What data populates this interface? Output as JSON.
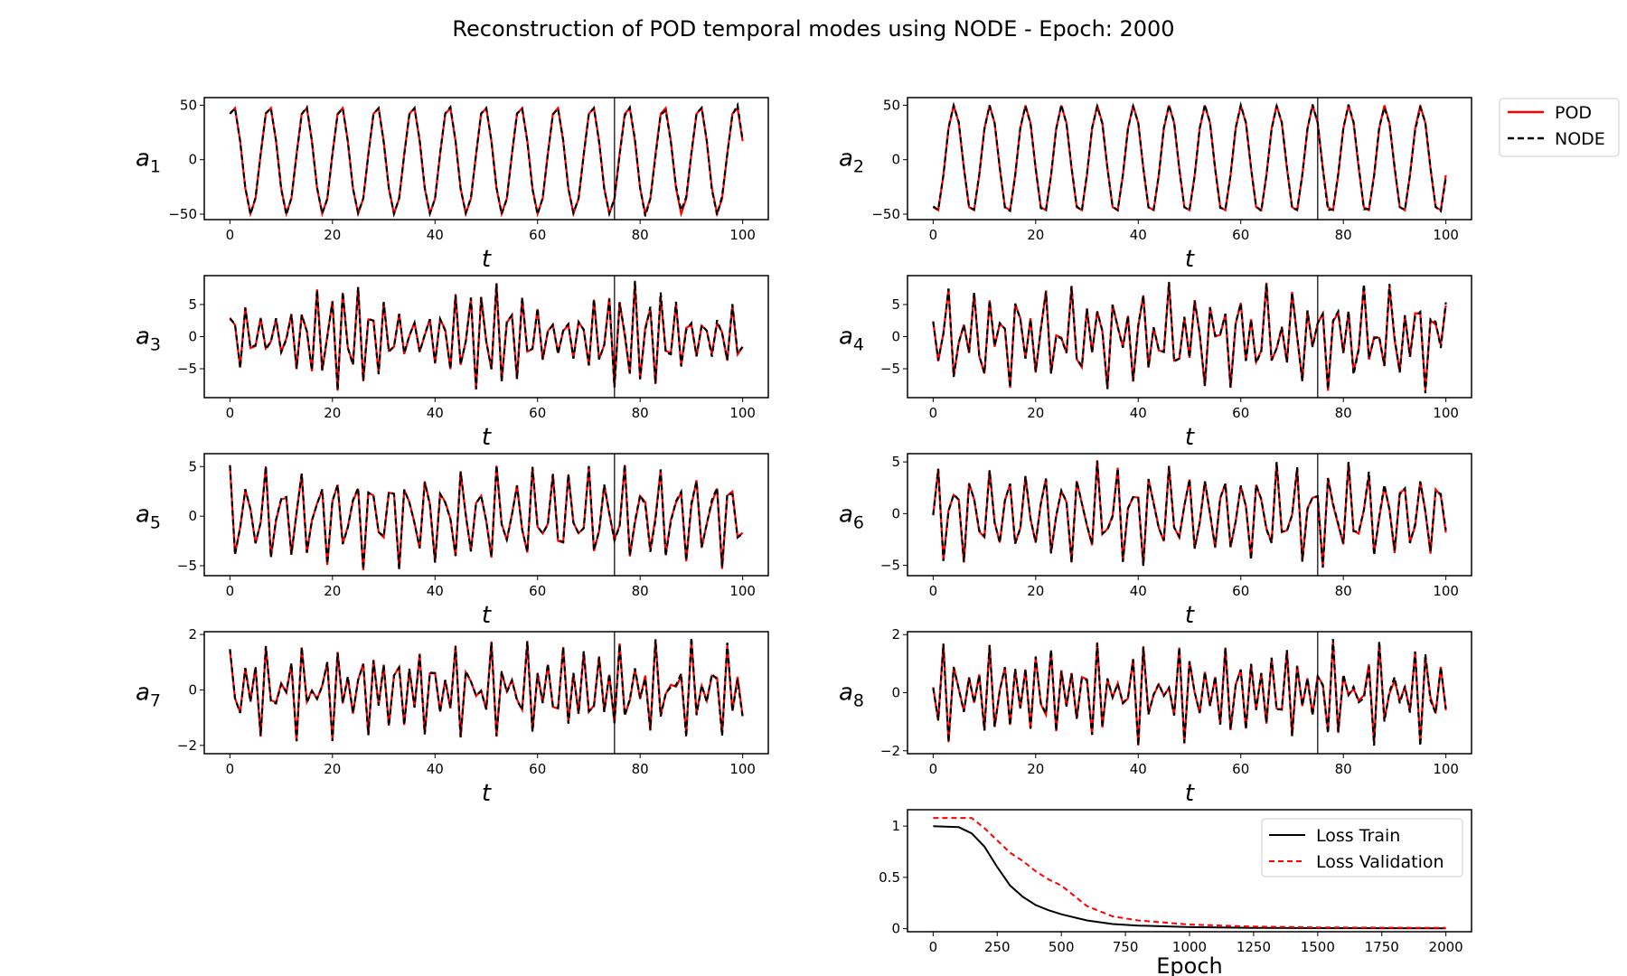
{
  "figure": {
    "title": "Reconstruction of POD temporal modes using NODE - Epoch:  2000"
  },
  "legend": {
    "pod": "POD",
    "node": "NODE"
  },
  "colors": {
    "pod": "#ff0000",
    "node": "#000000",
    "split": "#000000"
  },
  "chart_data": [
    {
      "type": "line",
      "panel": "a1",
      "ylabel_base": "a",
      "ylabel_sub": "1",
      "xlabel": "t",
      "xlim": [
        -5,
        105
      ],
      "ylim": [
        -55,
        57
      ],
      "xticks": [
        0,
        20,
        40,
        60,
        80,
        100
      ],
      "yticks": [
        -50,
        0,
        50
      ],
      "split_x": 75,
      "amplitude": 50,
      "period": 7.0,
      "phase": 1.0,
      "x_range": [
        0,
        100
      ],
      "n_points": 101,
      "series": [
        {
          "name": "POD",
          "style": "solid"
        },
        {
          "name": "NODE",
          "style": "dashed"
        }
      ]
    },
    {
      "type": "line",
      "panel": "a2",
      "ylabel_base": "a",
      "ylabel_sub": "2",
      "xlabel": "t",
      "xlim": [
        -5,
        105
      ],
      "ylim": [
        -55,
        57
      ],
      "xticks": [
        0,
        20,
        40,
        60,
        80,
        100
      ],
      "yticks": [
        -50,
        0,
        50
      ],
      "split_x": 75,
      "amplitude": 50,
      "period": 7.0,
      "phase": 4.2,
      "x_range": [
        0,
        100
      ],
      "n_points": 101,
      "series": [
        {
          "name": "POD",
          "style": "solid"
        },
        {
          "name": "NODE",
          "style": "dashed"
        }
      ]
    },
    {
      "type": "line",
      "panel": "a3",
      "ylabel_base": "a",
      "ylabel_sub": "3",
      "xlabel": "t",
      "xlim": [
        -5,
        105
      ],
      "ylim": [
        -9.5,
        9.5
      ],
      "xticks": [
        0,
        20,
        40,
        60,
        80,
        100
      ],
      "yticks": [
        -5,
        0,
        5
      ],
      "split_x": 75,
      "amplitude": 8.5,
      "period": 2.7,
      "phase": 0.0,
      "x_range": [
        0,
        100
      ],
      "n_points": 101,
      "series": [
        {
          "name": "POD",
          "style": "solid"
        },
        {
          "name": "NODE",
          "style": "dashed"
        }
      ]
    },
    {
      "type": "line",
      "panel": "a4",
      "ylabel_base": "a",
      "ylabel_sub": "4",
      "xlabel": "t",
      "xlim": [
        -5,
        105
      ],
      "ylim": [
        -9.5,
        9.5
      ],
      "xticks": [
        0,
        20,
        40,
        60,
        80,
        100
      ],
      "yticks": [
        -5,
        0,
        5
      ],
      "split_x": 75,
      "amplitude": 8.5,
      "period": 2.7,
      "phase": 1.3,
      "x_range": [
        0,
        100
      ],
      "n_points": 101,
      "series": [
        {
          "name": "POD",
          "style": "solid"
        },
        {
          "name": "NODE",
          "style": "dashed"
        }
      ]
    },
    {
      "type": "line",
      "panel": "a5",
      "ylabel_base": "a",
      "ylabel_sub": "5",
      "xlabel": "t",
      "xlim": [
        -5,
        105
      ],
      "ylim": [
        -6.0,
        6.3
      ],
      "xticks": [
        0,
        20,
        40,
        60,
        80,
        100
      ],
      "yticks": [
        -5,
        0,
        5
      ],
      "split_x": 75,
      "amplitude": 5.5,
      "period": 3.5,
      "phase": 2.0,
      "x_range": [
        0,
        100
      ],
      "n_points": 101,
      "series": [
        {
          "name": "POD",
          "style": "solid"
        },
        {
          "name": "NODE",
          "style": "dashed"
        }
      ]
    },
    {
      "type": "line",
      "panel": "a6",
      "ylabel_base": "a",
      "ylabel_sub": "6",
      "xlabel": "t",
      "xlim": [
        -5,
        105
      ],
      "ylim": [
        -6.0,
        5.8
      ],
      "xticks": [
        0,
        20,
        40,
        60,
        80,
        100
      ],
      "yticks": [
        -5,
        0,
        5
      ],
      "split_x": 75,
      "amplitude": 5.3,
      "period": 3.5,
      "phase": 0.5,
      "x_range": [
        0,
        100
      ],
      "n_points": 101,
      "series": [
        {
          "name": "POD",
          "style": "solid"
        },
        {
          "name": "NODE",
          "style": "dashed"
        }
      ]
    },
    {
      "type": "line",
      "panel": "a7",
      "ylabel_base": "a",
      "ylabel_sub": "7",
      "xlabel": "t",
      "xlim": [
        -5,
        105
      ],
      "ylim": [
        -2.3,
        2.1
      ],
      "xticks": [
        0,
        20,
        40,
        60,
        80,
        100
      ],
      "yticks": [
        -2,
        0,
        2
      ],
      "split_x": 75,
      "amplitude": 1.9,
      "period": 2.3,
      "phase": 0.7,
      "x_range": [
        0,
        100
      ],
      "n_points": 101,
      "series": [
        {
          "name": "POD",
          "style": "solid"
        },
        {
          "name": "NODE",
          "style": "dashed"
        }
      ]
    },
    {
      "type": "line",
      "panel": "a8",
      "ylabel_base": "a",
      "ylabel_sub": "8",
      "xlabel": "t",
      "xlim": [
        -5,
        105
      ],
      "ylim": [
        -2.1,
        2.1
      ],
      "xticks": [
        0,
        20,
        40,
        60,
        80,
        100
      ],
      "yticks": [
        -2,
        0,
        2
      ],
      "split_x": 75,
      "amplitude": 1.85,
      "period": 2.3,
      "phase": 2.4,
      "x_range": [
        0,
        100
      ],
      "n_points": 101,
      "series": [
        {
          "name": "POD",
          "style": "solid"
        },
        {
          "name": "NODE",
          "style": "dashed"
        }
      ]
    },
    {
      "type": "line",
      "panel": "loss",
      "xlabel": "Epoch",
      "ylabel": "",
      "xlim": [
        -100,
        2100
      ],
      "ylim": [
        -0.03,
        1.16
      ],
      "xticks": [
        0,
        250,
        500,
        750,
        1000,
        1250,
        1500,
        1750,
        2000
      ],
      "yticks": [
        0.0,
        0.5,
        1.0
      ],
      "legend_position": "top-right",
      "x": [
        0,
        100,
        150,
        200,
        250,
        300,
        350,
        400,
        450,
        500,
        600,
        700,
        800,
        1000,
        1250,
        1500,
        2000
      ],
      "series": [
        {
          "name": "Loss Train",
          "style": "solid",
          "color": "#000000",
          "values": [
            1.0,
            0.99,
            0.93,
            0.8,
            0.6,
            0.42,
            0.31,
            0.23,
            0.18,
            0.14,
            0.08,
            0.045,
            0.03,
            0.015,
            0.008,
            0.005,
            0.003
          ]
        },
        {
          "name": "Loss Validation",
          "style": "dashed",
          "color": "#ff0000",
          "values": [
            1.08,
            1.08,
            1.08,
            0.98,
            0.86,
            0.74,
            0.66,
            0.56,
            0.48,
            0.42,
            0.22,
            0.12,
            0.08,
            0.04,
            0.02,
            0.012,
            0.008
          ]
        }
      ]
    }
  ]
}
